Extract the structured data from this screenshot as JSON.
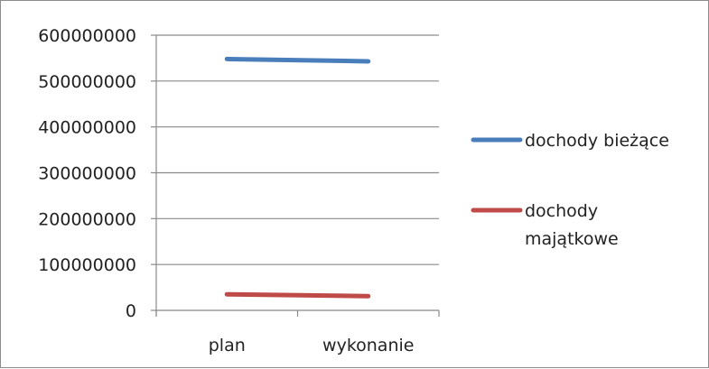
{
  "chart_data": {
    "type": "line",
    "title": "",
    "xlabel": "",
    "ylabel": "",
    "categories": [
      "plan",
      "wykonanie"
    ],
    "ylim": [
      0,
      600000000
    ],
    "yticks": [
      0,
      100000000,
      200000000,
      300000000,
      400000000,
      500000000,
      600000000
    ],
    "ytick_labels": [
      "0",
      "100000000",
      "200000000",
      "300000000",
      "400000000",
      "500000000",
      "600000000"
    ],
    "grid": "horizontal",
    "legend_position": "right",
    "series": [
      {
        "name": "dochody bieżące",
        "name_lines": [
          "dochody bieżące"
        ],
        "color": "#4a7ebb",
        "values": [
          548000000,
          543000000
        ]
      },
      {
        "name": "dochody majątkowe",
        "name_lines": [
          "dochody",
          "majątkowe"
        ],
        "color": "#be4b48",
        "values": [
          35000000,
          31000000
        ]
      }
    ]
  }
}
